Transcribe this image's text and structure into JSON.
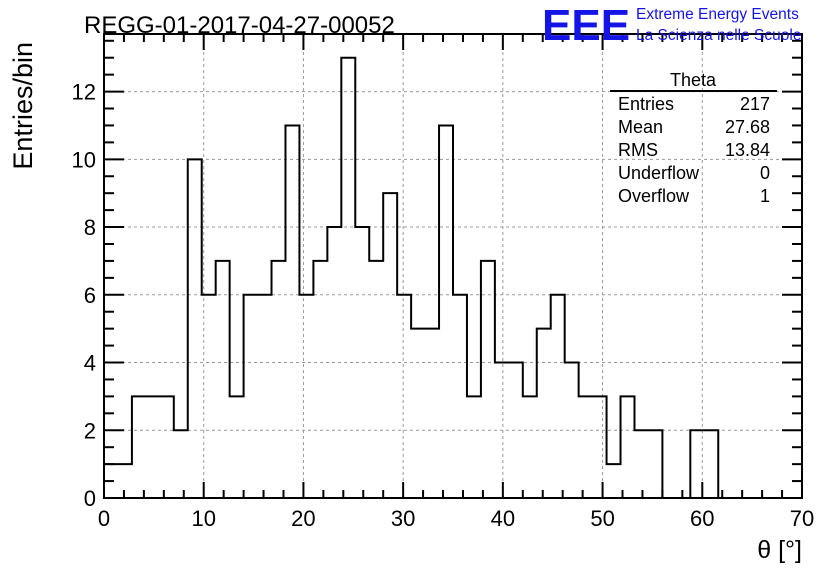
{
  "title": "REGG-01-2017-04-27-00052",
  "logo": {
    "mark": "EEE",
    "line1": "Extreme Energy Events",
    "line2": "La Scienza nelle Scuole",
    "color": "#1414e6"
  },
  "stats_box": {
    "name": "Theta",
    "rows": [
      {
        "label": "Entries",
        "value": "217"
      },
      {
        "label": "Mean",
        "value": "27.68"
      },
      {
        "label": "RMS",
        "value": "13.84"
      },
      {
        "label": "Underflow",
        "value": "0"
      },
      {
        "label": "Overflow",
        "value": "1"
      }
    ]
  },
  "chart_data": {
    "type": "bar",
    "style": "step-histogram",
    "xlabel": "θ [°]",
    "ylabel": "Entries/bin",
    "xlim": [
      0,
      70
    ],
    "ylim": [
      0,
      13.7
    ],
    "xticks": [
      0,
      10,
      20,
      30,
      40,
      50,
      60,
      70
    ],
    "yticks": [
      0,
      2,
      4,
      6,
      8,
      10,
      12
    ],
    "grid": true,
    "bin_width": 1.4,
    "values": [
      1,
      1,
      3,
      3,
      3,
      2,
      10,
      6,
      7,
      3,
      6,
      6,
      7,
      11,
      6,
      7,
      8,
      13,
      8,
      7,
      9,
      6,
      5,
      5,
      11,
      6,
      3,
      7,
      4,
      4,
      3,
      5,
      6,
      4,
      3,
      3,
      1,
      3,
      2,
      2,
      0,
      0,
      2,
      2
    ]
  }
}
